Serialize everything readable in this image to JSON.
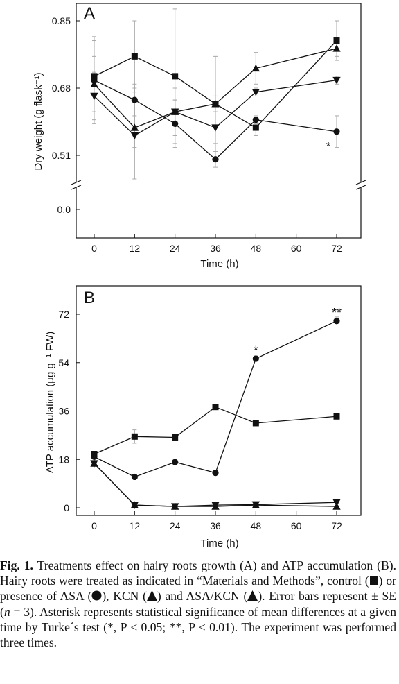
{
  "panels": [
    {
      "id": "A",
      "letter": "A",
      "xlabel": "Time (h)",
      "ylabel": "Dry weight (g flask⁻¹)",
      "x_ticks": [
        "0",
        "12",
        "24",
        "36",
        "48",
        "60",
        "72"
      ],
      "y_ticks": [
        "0.0",
        "0.51",
        "0.68",
        "0.85"
      ],
      "annotations": [
        {
          "text": "*",
          "x": 72,
          "y": 0.56
        }
      ]
    },
    {
      "id": "B",
      "letter": "B",
      "xlabel": "Time (h)",
      "ylabel": "ATP accumulation (µg g⁻¹ FW)",
      "x_ticks": [
        "0",
        "12",
        "24",
        "36",
        "48",
        "60",
        "72"
      ],
      "y_ticks": [
        "0",
        "18",
        "36",
        "54",
        "72"
      ],
      "annotations": [
        {
          "text": "*",
          "x": 48,
          "y": 58.5
        },
        {
          "text": "**",
          "x": 72,
          "y": 72.5
        }
      ]
    }
  ],
  "chart_data": [
    {
      "type": "line",
      "panel": "A",
      "xlabel": "Time (h)",
      "ylabel": "Dry weight (g flask-1)",
      "x": [
        0,
        12,
        24,
        36,
        48,
        72
      ],
      "ylim_upper": [
        0.47,
        0.88
      ],
      "y_broken_axis": true,
      "series": [
        {
          "marker": "square",
          "values": [
            0.71,
            0.76,
            0.71,
            0.64,
            0.58,
            0.8
          ],
          "errors": [
            0.09,
            0.09,
            0.17,
            0.12,
            0.02,
            0.05
          ]
        },
        {
          "marker": "circle",
          "values": [
            0.7,
            0.65,
            0.59,
            0.5,
            0.6,
            0.57
          ],
          "errors": [
            0.11,
            0.04,
            0.06,
            0.02,
            0.01,
            0.04
          ]
        },
        {
          "marker": "triangle-up",
          "values": [
            0.69,
            0.58,
            0.62,
            0.64,
            0.73,
            0.78
          ],
          "errors": [
            0.07,
            0.05,
            0.03,
            0.02,
            0.04,
            0.02
          ]
        },
        {
          "marker": "triangle-down",
          "values": [
            0.66,
            0.56,
            0.62,
            0.58,
            0.67,
            0.7
          ],
          "errors": [
            0.06,
            0.12,
            0.06,
            0.04,
            0.01,
            0.01
          ]
        }
      ]
    },
    {
      "type": "line",
      "panel": "B",
      "xlabel": "Time (h)",
      "ylabel": "ATP accumulation (µg g-1 FW)",
      "x": [
        0,
        12,
        24,
        36,
        48,
        72
      ],
      "ylim": [
        -2,
        78
      ],
      "series": [
        {
          "marker": "square",
          "values": [
            20,
            26.5,
            26.2,
            37.5,
            31.5,
            34
          ],
          "errors": [
            0.6,
            2.5,
            0.6,
            0.5,
            0.6,
            1.0
          ]
        },
        {
          "marker": "circle",
          "values": [
            19,
            11.5,
            17,
            13,
            55.5,
            69.5
          ],
          "errors": [
            0.6,
            0.5,
            0.5,
            0.5,
            1.0,
            1.5
          ]
        },
        {
          "marker": "triangle-up",
          "values": [
            16.5,
            1,
            0.5,
            0.5,
            1,
            0.5
          ],
          "errors": [
            0.3,
            0.3,
            0.2,
            0.2,
            0.3,
            0.2
          ]
        },
        {
          "marker": "triangle-down",
          "values": [
            16.5,
            1,
            0.5,
            1,
            1.2,
            2
          ],
          "errors": [
            0.3,
            0.3,
            0.2,
            0.2,
            0.3,
            0.4
          ]
        }
      ]
    }
  ],
  "caption": {
    "label": "Fig. 1.",
    "part1": " Treatments effect on hairy roots growth (A) and ATP accumulation (B). Hairy roots were treated as indicated in “Materials and Methods”, control (",
    "part2": ") or presence of ASA (",
    "part3": "), KCN (",
    "part4": ") and ASA/KCN (",
    "part5": "). Error bars represent ± SE (",
    "n_italic": "n",
    "part6": " = 3). Asterisk represents statistical significance of mean differences at a given time by Turke´s test (*, P ≤ 0.05; **, P ≤ 0.01). The experiment was performed three times."
  }
}
